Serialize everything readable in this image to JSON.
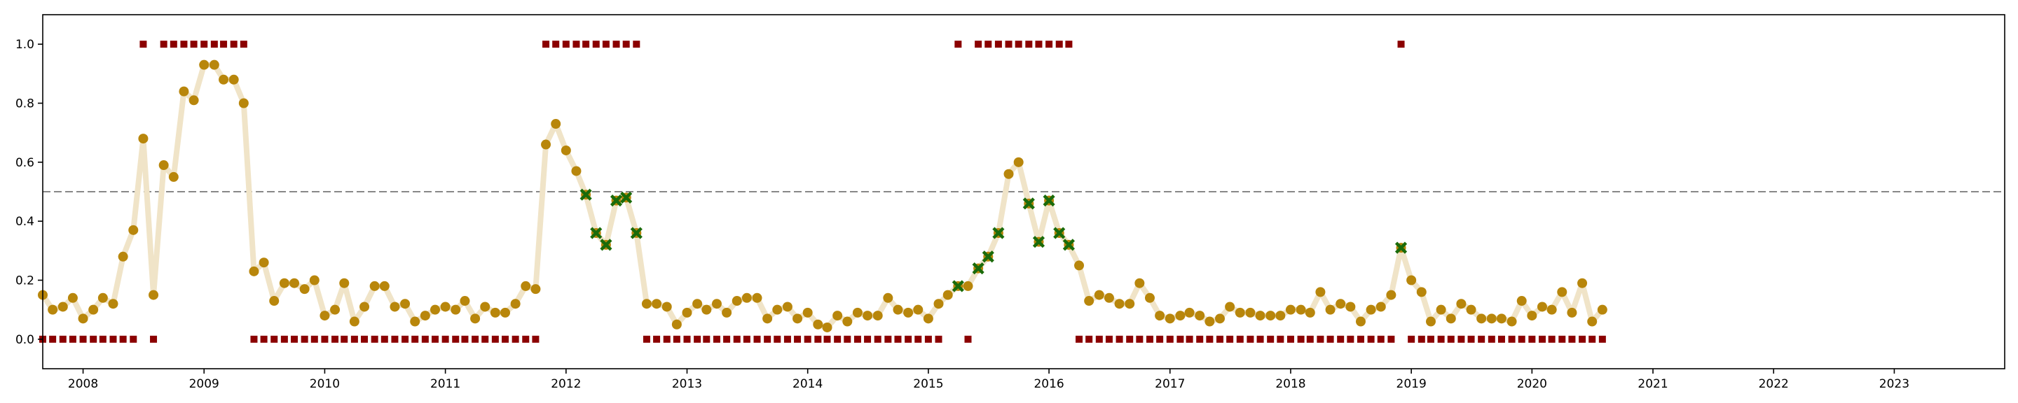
{
  "chart_data": {
    "type": "scatter",
    "x_axis": {
      "type": "date",
      "range": [
        "2007-09-01",
        "2023-12-01"
      ],
      "ticks": [
        "2008-01-01",
        "2009-01-01",
        "2010-01-01",
        "2011-01-01",
        "2012-01-01",
        "2013-01-01",
        "2014-01-01",
        "2015-01-01",
        "2016-01-01",
        "2017-01-01",
        "2018-01-01",
        "2019-01-01",
        "2020-01-01",
        "2021-01-01",
        "2022-01-01",
        "2023-01-01"
      ],
      "tick_labels": [
        "2008",
        "2009",
        "2010",
        "2011",
        "2012",
        "2013",
        "2014",
        "2015",
        "2016",
        "2017",
        "2018",
        "2019",
        "2020",
        "2021",
        "2022",
        "2023"
      ]
    },
    "y_axis": {
      "range": [
        -0.1,
        1.1
      ],
      "ticks": [
        0.0,
        0.2,
        0.4,
        0.6,
        0.8,
        1.0
      ],
      "tick_labels": [
        "0.0",
        "0.2",
        "0.4",
        "0.6",
        "0.8",
        "1.0"
      ]
    },
    "grid": false,
    "reference_line": {
      "y": 0.5,
      "style": "dashed",
      "color": "#888888"
    },
    "colors": {
      "line": "#f0e4c8",
      "point": "#b8860b",
      "cross": "#1a6b0a",
      "square": "#8b0000"
    },
    "series": [
      {
        "type": "line+scatter",
        "x": [
          "2007-09",
          "2007-10",
          "2007-11",
          "2007-12",
          "2008-01",
          "2008-02",
          "2008-03",
          "2008-04",
          "2008-05",
          "2008-06",
          "2008-07",
          "2008-08",
          "2008-09",
          "2008-10",
          "2008-11",
          "2008-12",
          "2009-01",
          "2009-02",
          "2009-03",
          "2009-04",
          "2009-05",
          "2009-06",
          "2009-07",
          "2009-08",
          "2009-09",
          "2009-10",
          "2009-11",
          "2009-12",
          "2010-01",
          "2010-02",
          "2010-03",
          "2010-04",
          "2010-05",
          "2010-06",
          "2010-07",
          "2010-08",
          "2010-09",
          "2010-10",
          "2010-11",
          "2010-12",
          "2011-01",
          "2011-02",
          "2011-03",
          "2011-04",
          "2011-05",
          "2011-06",
          "2011-07",
          "2011-08",
          "2011-09",
          "2011-10",
          "2011-11",
          "2011-12",
          "2012-01",
          "2012-02",
          "2012-03",
          "2012-04",
          "2012-05",
          "2012-06",
          "2012-07",
          "2012-08",
          "2012-09",
          "2012-10",
          "2012-11",
          "2012-12",
          "2013-01",
          "2013-02",
          "2013-03",
          "2013-04",
          "2013-05",
          "2013-06",
          "2013-07",
          "2013-08",
          "2013-09",
          "2013-10",
          "2013-11",
          "2013-12",
          "2014-01",
          "2014-02",
          "2014-03",
          "2014-04",
          "2014-05",
          "2014-06",
          "2014-07",
          "2014-08",
          "2014-09",
          "2014-10",
          "2014-11",
          "2014-12",
          "2015-01",
          "2015-02",
          "2015-03",
          "2015-04",
          "2015-05",
          "2015-06",
          "2015-07",
          "2015-08",
          "2015-09",
          "2015-10",
          "2015-11",
          "2015-12",
          "2016-01",
          "2016-02",
          "2016-03",
          "2016-04",
          "2016-05",
          "2016-06",
          "2016-07",
          "2016-08",
          "2016-09",
          "2016-10",
          "2016-11",
          "2016-12",
          "2017-01",
          "2017-02",
          "2017-03",
          "2017-04",
          "2017-05",
          "2017-06",
          "2017-07",
          "2017-08",
          "2017-09",
          "2017-10",
          "2017-11",
          "2017-12",
          "2018-01",
          "2018-02",
          "2018-03",
          "2018-04",
          "2018-05",
          "2018-06",
          "2018-07",
          "2018-08",
          "2018-09",
          "2018-10",
          "2018-11",
          "2018-12",
          "2019-01",
          "2019-02",
          "2019-03",
          "2019-04",
          "2019-05",
          "2019-06",
          "2019-07",
          "2019-08",
          "2019-09",
          "2019-10",
          "2019-11",
          "2019-12",
          "2020-01",
          "2020-02",
          "2020-03",
          "2020-04",
          "2020-05",
          "2020-06",
          "2020-07",
          "2020-08"
        ],
        "y": [
          0.15,
          0.1,
          0.11,
          0.14,
          0.07,
          0.1,
          0.14,
          0.12,
          0.28,
          0.37,
          0.68,
          0.15,
          0.59,
          0.55,
          0.84,
          0.81,
          0.93,
          0.93,
          0.88,
          0.88,
          0.8,
          0.23,
          0.26,
          0.13,
          0.19,
          0.19,
          0.17,
          0.2,
          0.08,
          0.1,
          0.19,
          0.06,
          0.11,
          0.18,
          0.18,
          0.11,
          0.12,
          0.06,
          0.08,
          0.1,
          0.11,
          0.1,
          0.13,
          0.07,
          0.11,
          0.09,
          0.09,
          0.12,
          0.18,
          0.17,
          0.66,
          0.73,
          0.64,
          0.57,
          0.49,
          0.36,
          0.32,
          0.47,
          0.48,
          0.36,
          0.12,
          0.12,
          0.11,
          0.05,
          0.09,
          0.12,
          0.1,
          0.12,
          0.09,
          0.13,
          0.14,
          0.14,
          0.07,
          0.1,
          0.11,
          0.07,
          0.09,
          0.05,
          0.04,
          0.08,
          0.06,
          0.09,
          0.08,
          0.08,
          0.14,
          0.1,
          0.09,
          0.1,
          0.07,
          0.12,
          0.15,
          0.18,
          0.18,
          0.24,
          0.28,
          0.36,
          0.56,
          0.6,
          0.46,
          0.33,
          0.47,
          0.36,
          0.32,
          0.25,
          0.13,
          0.15,
          0.14,
          0.12,
          0.12,
          0.19,
          0.14,
          0.08,
          0.07,
          0.08,
          0.09,
          0.08,
          0.06,
          0.07,
          0.11,
          0.09,
          0.09,
          0.08,
          0.08,
          0.08,
          0.1,
          0.1,
          0.09,
          0.16,
          0.1,
          0.12,
          0.11,
          0.06,
          0.1,
          0.11,
          0.15,
          0.31,
          0.2,
          0.16,
          0.06,
          0.1,
          0.07,
          0.12,
          0.1,
          0.07,
          0.07,
          0.07,
          0.06,
          0.13,
          0.08,
          0.11,
          0.1,
          0.16,
          0.09,
          0.19,
          0.06,
          0.1
        ]
      },
      {
        "type": "cross",
        "points": [
          [
            "2012-03",
            0.49
          ],
          [
            "2012-04",
            0.36
          ],
          [
            "2012-05",
            0.32
          ],
          [
            "2012-06",
            0.47
          ],
          [
            "2012-07",
            0.48
          ],
          [
            "2012-08",
            0.36
          ],
          [
            "2015-04",
            0.18
          ],
          [
            "2015-06",
            0.24
          ],
          [
            "2015-07",
            0.28
          ],
          [
            "2015-08",
            0.36
          ],
          [
            "2015-11",
            0.46
          ],
          [
            "2015-12",
            0.33
          ],
          [
            "2016-01",
            0.47
          ],
          [
            "2016-02",
            0.36
          ],
          [
            "2016-03",
            0.32
          ],
          [
            "2018-12",
            0.31
          ]
        ]
      },
      {
        "type": "square",
        "points": [
          [
            "2007-09",
            0
          ],
          [
            "2007-10",
            0
          ],
          [
            "2007-11",
            0
          ],
          [
            "2007-12",
            0
          ],
          [
            "2008-01",
            0
          ],
          [
            "2008-02",
            0
          ],
          [
            "2008-03",
            0
          ],
          [
            "2008-04",
            0
          ],
          [
            "2008-05",
            0
          ],
          [
            "2008-06",
            0
          ],
          [
            "2008-07",
            1
          ],
          [
            "2008-08",
            0
          ],
          [
            "2008-09",
            1
          ],
          [
            "2008-10",
            1
          ],
          [
            "2008-11",
            1
          ],
          [
            "2008-12",
            1
          ],
          [
            "2009-01",
            1
          ],
          [
            "2009-02",
            1
          ],
          [
            "2009-03",
            1
          ],
          [
            "2009-04",
            1
          ],
          [
            "2009-05",
            1
          ],
          [
            "2009-06",
            0
          ],
          [
            "2009-07",
            0
          ],
          [
            "2009-08",
            0
          ],
          [
            "2009-09",
            0
          ],
          [
            "2009-10",
            0
          ],
          [
            "2009-11",
            0
          ],
          [
            "2009-12",
            0
          ],
          [
            "2010-01",
            0
          ],
          [
            "2010-02",
            0
          ],
          [
            "2010-03",
            0
          ],
          [
            "2010-04",
            0
          ],
          [
            "2010-05",
            0
          ],
          [
            "2010-06",
            0
          ],
          [
            "2010-07",
            0
          ],
          [
            "2010-08",
            0
          ],
          [
            "2010-09",
            0
          ],
          [
            "2010-10",
            0
          ],
          [
            "2010-11",
            0
          ],
          [
            "2010-12",
            0
          ],
          [
            "2011-01",
            0
          ],
          [
            "2011-02",
            0
          ],
          [
            "2011-03",
            0
          ],
          [
            "2011-04",
            0
          ],
          [
            "2011-05",
            0
          ],
          [
            "2011-06",
            0
          ],
          [
            "2011-07",
            0
          ],
          [
            "2011-08",
            0
          ],
          [
            "2011-09",
            0
          ],
          [
            "2011-10",
            0
          ],
          [
            "2011-11",
            1
          ],
          [
            "2011-12",
            1
          ],
          [
            "2012-01",
            1
          ],
          [
            "2012-02",
            1
          ],
          [
            "2012-03",
            1
          ],
          [
            "2012-04",
            1
          ],
          [
            "2012-05",
            1
          ],
          [
            "2012-06",
            1
          ],
          [
            "2012-07",
            1
          ],
          [
            "2012-08",
            1
          ],
          [
            "2012-09",
            0
          ],
          [
            "2012-10",
            0
          ],
          [
            "2012-11",
            0
          ],
          [
            "2012-12",
            0
          ],
          [
            "2013-01",
            0
          ],
          [
            "2013-02",
            0
          ],
          [
            "2013-03",
            0
          ],
          [
            "2013-04",
            0
          ],
          [
            "2013-05",
            0
          ],
          [
            "2013-06",
            0
          ],
          [
            "2013-07",
            0
          ],
          [
            "2013-08",
            0
          ],
          [
            "2013-09",
            0
          ],
          [
            "2013-10",
            0
          ],
          [
            "2013-11",
            0
          ],
          [
            "2013-12",
            0
          ],
          [
            "2014-01",
            0
          ],
          [
            "2014-02",
            0
          ],
          [
            "2014-03",
            0
          ],
          [
            "2014-04",
            0
          ],
          [
            "2014-05",
            0
          ],
          [
            "2014-06",
            0
          ],
          [
            "2014-07",
            0
          ],
          [
            "2014-08",
            0
          ],
          [
            "2014-09",
            0
          ],
          [
            "2014-10",
            0
          ],
          [
            "2014-11",
            0
          ],
          [
            "2014-12",
            0
          ],
          [
            "2015-01",
            0
          ],
          [
            "2015-02",
            0
          ],
          [
            "2015-04",
            1
          ],
          [
            "2015-05",
            0
          ],
          [
            "2015-06",
            1
          ],
          [
            "2015-07",
            1
          ],
          [
            "2015-08",
            1
          ],
          [
            "2015-09",
            1
          ],
          [
            "2015-10",
            1
          ],
          [
            "2015-11",
            1
          ],
          [
            "2015-12",
            1
          ],
          [
            "2016-01",
            1
          ],
          [
            "2016-02",
            1
          ],
          [
            "2016-03",
            1
          ],
          [
            "2016-04",
            0
          ],
          [
            "2016-05",
            0
          ],
          [
            "2016-06",
            0
          ],
          [
            "2016-07",
            0
          ],
          [
            "2016-08",
            0
          ],
          [
            "2016-09",
            0
          ],
          [
            "2016-10",
            0
          ],
          [
            "2016-11",
            0
          ],
          [
            "2016-12",
            0
          ],
          [
            "2017-01",
            0
          ],
          [
            "2017-02",
            0
          ],
          [
            "2017-03",
            0
          ],
          [
            "2017-04",
            0
          ],
          [
            "2017-05",
            0
          ],
          [
            "2017-06",
            0
          ],
          [
            "2017-07",
            0
          ],
          [
            "2017-08",
            0
          ],
          [
            "2017-09",
            0
          ],
          [
            "2017-10",
            0
          ],
          [
            "2017-11",
            0
          ],
          [
            "2017-12",
            0
          ],
          [
            "2018-01",
            0
          ],
          [
            "2018-02",
            0
          ],
          [
            "2018-03",
            0
          ],
          [
            "2018-04",
            0
          ],
          [
            "2018-05",
            0
          ],
          [
            "2018-06",
            0
          ],
          [
            "2018-07",
            0
          ],
          [
            "2018-08",
            0
          ],
          [
            "2018-09",
            0
          ],
          [
            "2018-10",
            0
          ],
          [
            "2018-11",
            0
          ],
          [
            "2018-12",
            1
          ],
          [
            "2019-01",
            0
          ],
          [
            "2019-02",
            0
          ],
          [
            "2019-03",
            0
          ],
          [
            "2019-04",
            0
          ],
          [
            "2019-05",
            0
          ],
          [
            "2019-06",
            0
          ],
          [
            "2019-07",
            0
          ],
          [
            "2019-08",
            0
          ],
          [
            "2019-09",
            0
          ],
          [
            "2019-10",
            0
          ],
          [
            "2019-11",
            0
          ],
          [
            "2019-12",
            0
          ],
          [
            "2020-01",
            0
          ],
          [
            "2020-02",
            0
          ],
          [
            "2020-03",
            0
          ],
          [
            "2020-04",
            0
          ],
          [
            "2020-05",
            0
          ],
          [
            "2020-06",
            0
          ],
          [
            "2020-07",
            0
          ],
          [
            "2020-08",
            0
          ]
        ]
      }
    ]
  }
}
